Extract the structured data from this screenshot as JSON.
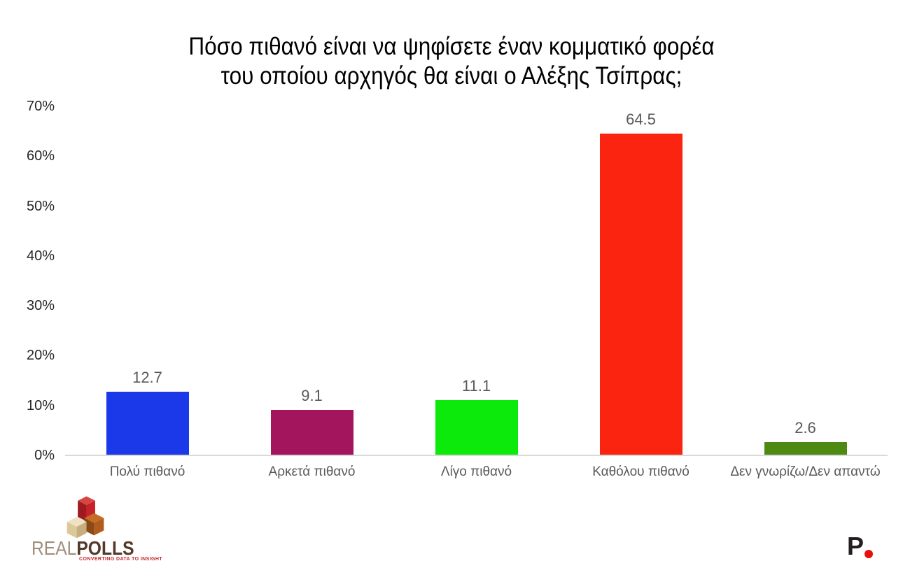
{
  "chart_data": {
    "type": "bar",
    "title": "Πόσο πιθανό είναι να ψηφίσετε έναν κομματικό φορέα του οποίου αρχηγός θα είναι ο Αλέξης Τσίπρας;",
    "title_line1": "Πόσο πιθανό είναι να ψηφίσετε έναν κομματικό φορέα",
    "title_line2": "του οποίου αρχηγός θα είναι ο Αλέξης Τσίπρας;",
    "categories": [
      "Πολύ πιθανό",
      "Αρκετά πιθανό",
      "Λίγο πιθανό",
      "Καθόλου πιθανό",
      "Δεν γνωρίζω/Δεν απαντώ"
    ],
    "values": [
      12.7,
      9.1,
      11.1,
      64.5,
      2.6
    ],
    "value_labels": [
      "12.7",
      "9.1",
      "11.1",
      "64.5",
      "2.6"
    ],
    "bar_colors": [
      "#1b39e8",
      "#a3155c",
      "#0bea0b",
      "#fa2410",
      "#4e8a12"
    ],
    "y_tick_labels": [
      "0%",
      "10%",
      "20%",
      "30%",
      "40%",
      "50%",
      "60%",
      "70%"
    ],
    "ylim": [
      0,
      70
    ],
    "xlabel": "",
    "ylabel": "",
    "grid": false,
    "legend": "none",
    "tick_label_color": "#262626",
    "value_label_color": "#595959",
    "category_label_color": "#595959",
    "axis_line_color": "#d9d9d9"
  },
  "footer": {
    "realpolls": {
      "text_light": "REAL",
      "text_bold": "POLLS",
      "tagline": "CONVERTING DATA TO INSIGHT",
      "text_light_color": "#a08e7a",
      "text_bold_color": "#53392a",
      "tagline_color": "#c2272c",
      "cube_red": {
        "top": "#d8453e",
        "left": "#9e1a20",
        "right": "#c52127"
      },
      "cube_tan": {
        "top": "#efe2c4",
        "left": "#dcc998",
        "right": "#c7ae80"
      },
      "cube_brown": {
        "top": "#c46d26",
        "left": "#8a4a16",
        "right": "#b05c1e"
      }
    },
    "p_logo": {
      "letter": "P",
      "letter_color": "#231f20",
      "dot_color": "#e8100c"
    }
  }
}
